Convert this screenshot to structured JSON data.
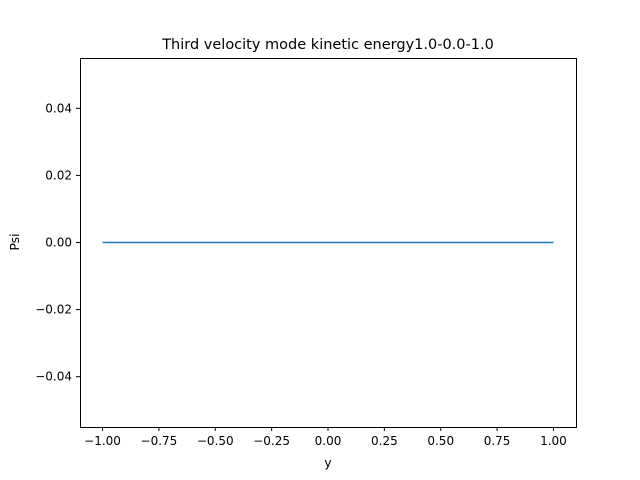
{
  "chart_data": {
    "type": "line",
    "title": "Third velocity mode kinetic energy1.0-0.0-1.0",
    "xlabel": "y",
    "ylabel": "Psi",
    "xlim": [
      -1.1,
      1.1
    ],
    "ylim": [
      -0.055,
      0.055
    ],
    "xticks": [
      -1.0,
      -0.75,
      -0.5,
      -0.25,
      0.0,
      0.25,
      0.5,
      0.75,
      1.0
    ],
    "xtick_labels": [
      "−1.00",
      "−0.75",
      "−0.50",
      "−0.25",
      "0.00",
      "0.25",
      "0.50",
      "0.75",
      "1.00"
    ],
    "yticks": [
      -0.04,
      -0.02,
      0.0,
      0.02,
      0.04
    ],
    "ytick_labels": [
      "−0.04",
      "−0.02",
      "0.00",
      "0.02",
      "0.04"
    ],
    "grid": false,
    "series": [
      {
        "color": "#1f77b4",
        "x": [
          -1.0,
          1.0
        ],
        "y": [
          0.0,
          0.0
        ]
      }
    ]
  }
}
